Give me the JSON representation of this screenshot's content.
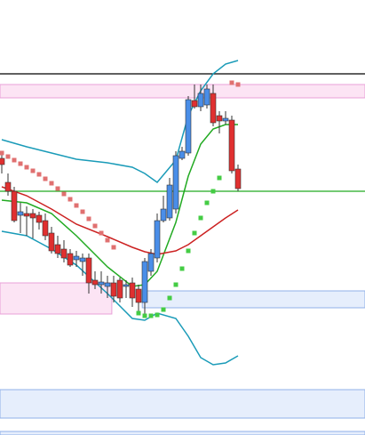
{
  "chart_data": {
    "type": "candlestick",
    "ylim": [
      0,
      489
    ],
    "up_color": "#4a8ee8",
    "down_color": "#e03030",
    "candles": {
      "open": [
        311,
        284,
        274,
        247,
        249,
        249,
        247,
        241,
        227,
        214,
        209,
        204,
        197,
        195,
        199,
        174,
        169,
        167,
        171,
        174,
        167,
        171,
        164,
        149,
        184,
        199,
        241,
        244,
        254,
        311,
        317,
        376,
        369,
        371,
        384,
        359,
        353,
        354,
        299
      ],
      "high": [
        319,
        294,
        279,
        261,
        257,
        254,
        251,
        249,
        234,
        224,
        219,
        209,
        207,
        204,
        204,
        184,
        184,
        179,
        179,
        177,
        174,
        177,
        169,
        199,
        209,
        249,
        269,
        289,
        319,
        324,
        381,
        394,
        394,
        394,
        394,
        364,
        364,
        359,
        304
      ],
      "low": [
        294,
        269,
        239,
        227,
        224,
        221,
        231,
        219,
        204,
        199,
        194,
        189,
        189,
        179,
        159,
        164,
        159,
        154,
        149,
        149,
        154,
        144,
        139,
        134,
        179,
        194,
        239,
        241,
        249,
        309,
        314,
        367,
        364,
        367,
        347,
        339,
        349,
        294,
        274
      ],
      "close": [
        304,
        274,
        241,
        251,
        246,
        244,
        239,
        224,
        207,
        204,
        199,
        191,
        201,
        199,
        171,
        169,
        172,
        171,
        156,
        154,
        169,
        154,
        149,
        195,
        204,
        241,
        254,
        281,
        314,
        319,
        377,
        369,
        384,
        389,
        351,
        353,
        356,
        297,
        277
      ]
    },
    "lines": [
      {
        "color": "#1a9bb8",
        "x": [
          0,
          4,
          8,
          12,
          17,
          21,
          23,
          25,
          28,
          30,
          32,
          34,
          36,
          38
        ],
        "values": [
          332,
          324,
          317,
          310,
          306,
          301,
          294,
          284,
          309,
          359,
          387,
          406,
          417,
          421
        ]
      },
      {
        "color": "#1a9bb8",
        "x": [
          0,
          4,
          8,
          12,
          17,
          21,
          23,
          25,
          28,
          30,
          32,
          34,
          36,
          38
        ],
        "values": [
          229,
          224,
          209,
          191,
          159,
          131,
          129,
          137,
          131,
          111,
          87,
          79,
          81,
          89
        ]
      },
      {
        "color": "#22aa22",
        "x": [
          0,
          4,
          8,
          12,
          17,
          21,
          23,
          25,
          28,
          30,
          32,
          34,
          36,
          38
        ],
        "values": [
          264,
          261,
          249,
          224,
          189,
          167,
          169,
          184,
          239,
          291,
          327,
          344,
          349,
          349
        ]
      },
      {
        "color": "#cc2222",
        "x": [
          0,
          4,
          8,
          12,
          17,
          21,
          23,
          25,
          28,
          30,
          32,
          34,
          36,
          38
        ],
        "values": [
          279,
          269,
          254,
          237,
          223,
          211,
          206,
          203,
          207,
          214,
          224,
          234,
          244,
          253
        ]
      }
    ],
    "dots": [
      {
        "color": "#e07070",
        "x": [
          0,
          1,
          2,
          3,
          4,
          5,
          6,
          7,
          8,
          9,
          10,
          11,
          12,
          13,
          14,
          15,
          16,
          17,
          18
        ],
        "values": [
          317,
          313,
          309,
          305,
          301,
          297,
          293,
          288,
          283,
          277,
          271,
          265,
          258,
          251,
          243,
          235,
          227,
          219,
          211
        ]
      },
      {
        "color": "#44cc44",
        "x": [
          22,
          23,
          24,
          25,
          26,
          27,
          28,
          29,
          30,
          31,
          32,
          33,
          34,
          35
        ],
        "values": [
          137,
          134,
          134,
          135,
          141,
          154,
          169,
          187,
          207,
          227,
          244,
          261,
          274,
          289
        ]
      },
      {
        "color": "#e07070",
        "x": [
          37,
          38
        ],
        "values": [
          396,
          394
        ]
      }
    ],
    "hlines": [
      {
        "color": "#000000",
        "value": 406
      },
      {
        "color": "#22aa22",
        "value": 274
      }
    ],
    "zones": [
      {
        "fill": "#fce4f4",
        "stroke": "#e8a0d8",
        "low": 379,
        "high": 394
      },
      {
        "fill": "#fce4f4",
        "stroke": "#e8a0d8",
        "low": 136,
        "high": 171,
        "x": [
          -0.3,
          17.7
        ]
      },
      {
        "fill": "#e6eefc",
        "stroke": "#90b0e8",
        "low": 143,
        "high": 162,
        "x": [
          22.6,
          58.5
        ]
      },
      {
        "fill": "#e6eefc",
        "stroke": "#90b0e8",
        "low": 19,
        "high": 51
      },
      {
        "fill": "#e6eefc",
        "stroke": "#90b0e8",
        "low": 0,
        "high": 4
      }
    ]
  }
}
